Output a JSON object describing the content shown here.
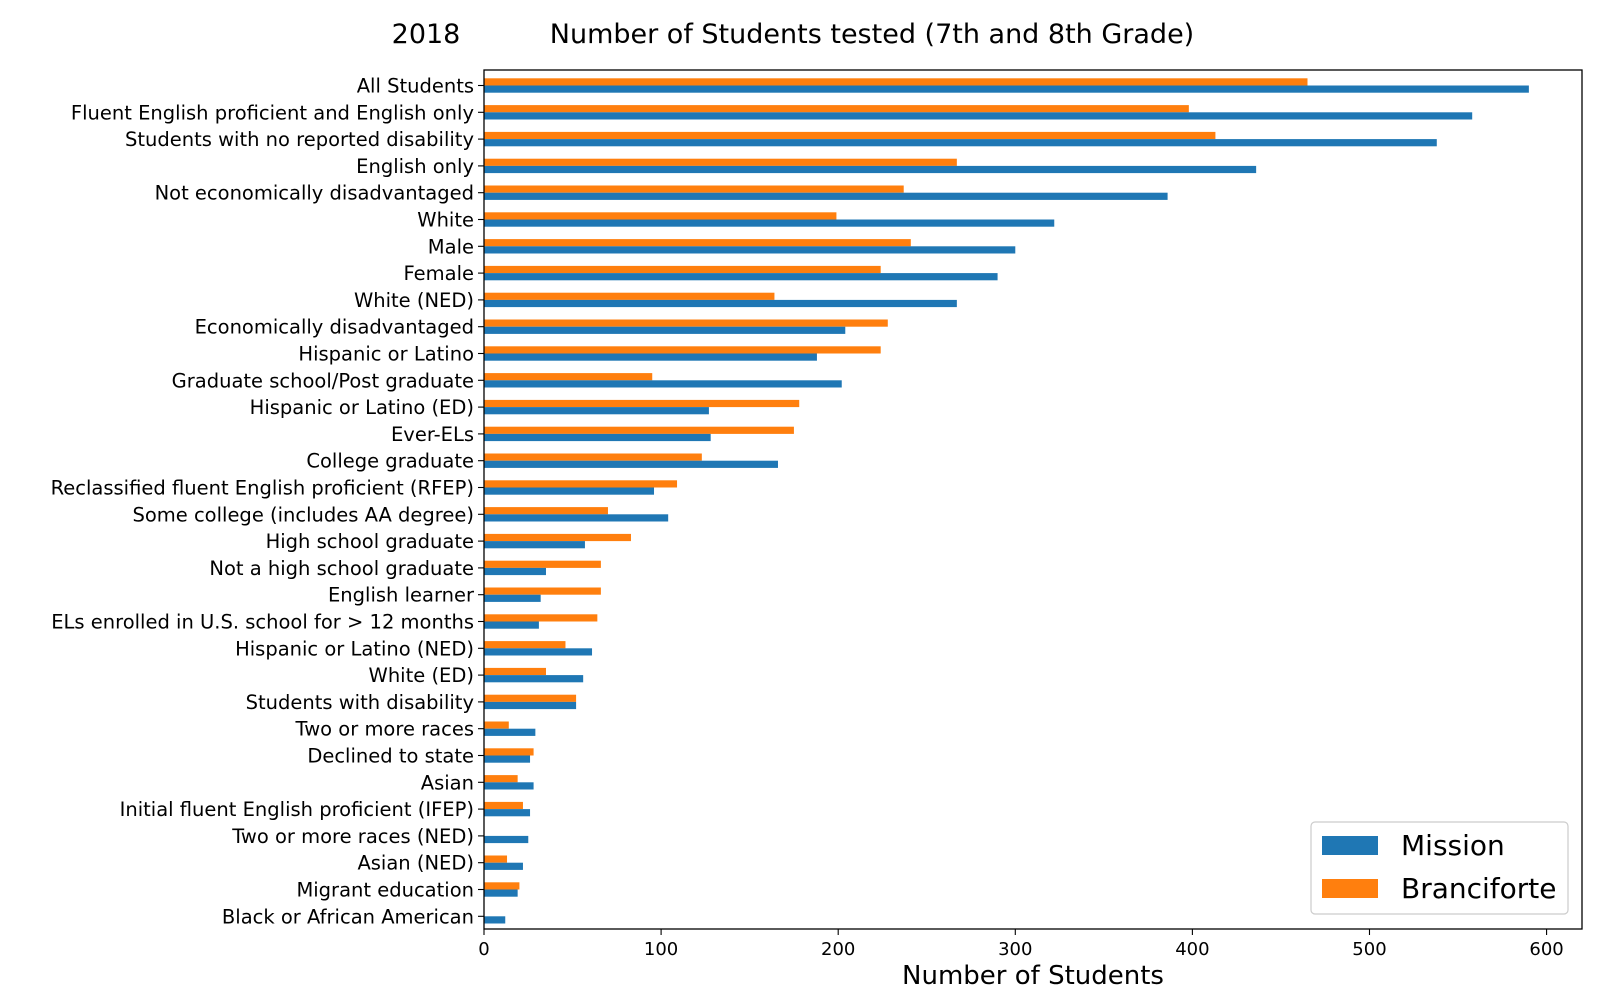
{
  "chart_data": {
    "type": "bar",
    "orientation": "horizontal",
    "title_year": "2018",
    "title": "Number of Students tested (7th and 8th Grade)",
    "xlabel": "Number of Students",
    "ylabel": "",
    "xlim": [
      0,
      620
    ],
    "xticks": [
      0,
      100,
      200,
      300,
      400,
      500,
      600
    ],
    "categories": [
      "All Students",
      "Fluent English proficient and English only",
      "Students with no reported disability",
      "English only",
      "Not economically disadvantaged",
      "White",
      "Male",
      "Female",
      "White (NED)",
      "Economically disadvantaged",
      "Hispanic or Latino",
      "Graduate school/Post graduate",
      "Hispanic or Latino (ED)",
      "Ever-ELs",
      "College graduate",
      "Reclassified fluent English proficient (RFEP)",
      "Some college (includes AA degree)",
      "High school graduate",
      "Not a high school graduate",
      "English learner",
      "ELs enrolled in U.S. school for > 12 months",
      "Hispanic or Latino (NED)",
      "White (ED)",
      "Students with disability",
      "Two or more races",
      "Declined to state",
      "Asian",
      "Initial fluent English proficient (IFEP)",
      "Two or more races (NED)",
      "Asian (NED)",
      "Migrant education",
      "Black or African American"
    ],
    "series": [
      {
        "name": "Mission",
        "color": "#1f77b4",
        "values": [
          590,
          558,
          538,
          436,
          386,
          322,
          300,
          290,
          267,
          204,
          188,
          202,
          127,
          128,
          166,
          96,
          104,
          57,
          35,
          32,
          31,
          61,
          56,
          52,
          29,
          26,
          28,
          26,
          25,
          22,
          19,
          12
        ]
      },
      {
        "name": "Branciforte",
        "color": "#ff7f0e",
        "values": [
          465,
          398,
          413,
          267,
          237,
          199,
          241,
          224,
          164,
          228,
          224,
          95,
          178,
          175,
          123,
          109,
          70,
          83,
          66,
          66,
          64,
          46,
          35,
          52,
          14,
          28,
          19,
          22,
          0,
          13,
          20,
          0
        ]
      }
    ],
    "legend": {
      "position": "lower-right",
      "labels": [
        "Mission",
        "Branciforte"
      ]
    },
    "grid": false
  }
}
